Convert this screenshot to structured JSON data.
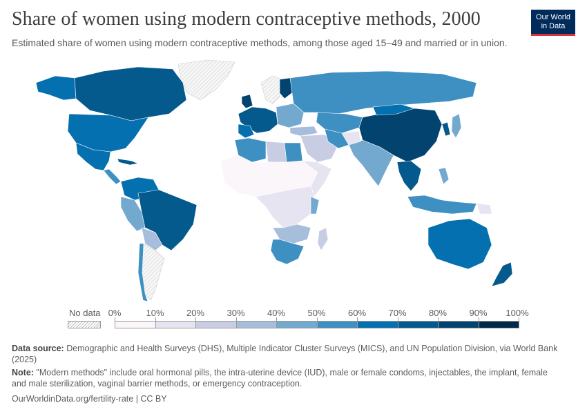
{
  "header": {
    "title": "Share of women using modern contraceptive methods, 2000",
    "subtitle": "Estimated share of women using modern contraceptive methods, among those aged 15–49 and married or in union.",
    "logo_line1": "Our World",
    "logo_line2": "in Data"
  },
  "legend": {
    "no_data_label": "No data",
    "bins": [
      {
        "label": "0%",
        "color": "#fbf6fa"
      },
      {
        "label": "10%",
        "color": "#e6e4f1"
      },
      {
        "label": "20%",
        "color": "#c9cde4"
      },
      {
        "label": "30%",
        "color": "#a6bddb"
      },
      {
        "label": "40%",
        "color": "#74a9cf"
      },
      {
        "label": "50%",
        "color": "#3e90c2"
      },
      {
        "label": "60%",
        "color": "#0570b0"
      },
      {
        "label": "70%",
        "color": "#045a8d"
      },
      {
        "label": "80%",
        "color": "#034370"
      },
      {
        "label": "90%",
        "color": "#02284a"
      }
    ],
    "end_label": "100%"
  },
  "footer": {
    "source_label": "Data source:",
    "source_text": " Demographic and Health Surveys (DHS), Multiple Indicator Cluster Surveys (MICS), and UN Population Division, via World Bank (2025)",
    "note_label": "Note:",
    "note_text": " \"Modern methods\" include oral hormonal pills, the intra-uterine device (IUD), male or female condoms, injectables, the implant, female and male sterilization, vaginal barrier methods, or emergency contraception.",
    "url": "OurWorldinData.org/fertility-rate | CC BY"
  },
  "map_colors": {
    "no_data_fill": "#f2f2f2",
    "border": "#ffffff"
  }
}
